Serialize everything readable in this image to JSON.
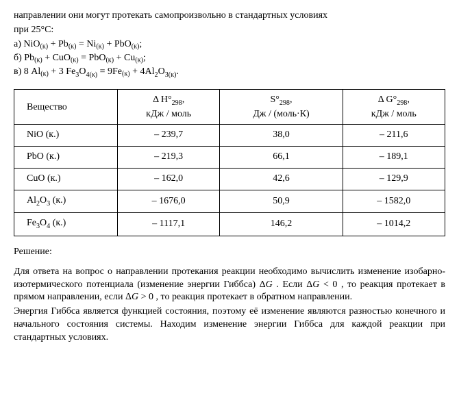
{
  "intro": {
    "line1": "направлении они могут протекать самопроизвольно в стандартных условиях",
    "line2": "при 25°С:"
  },
  "equations": {
    "a_label": "а) ",
    "a_html": "NiO<span class='sub-paren'>(к)</span> + Pb<span class='sub-paren'>(к)</span> = Ni<span class='sub-paren'>(к)</span> + PbO<span class='sub-paren'>(к)</span>;",
    "b_label": "б) ",
    "b_html": "Pb<span class='sub-paren'>(к)</span> + CuO<span class='sub-paren'>(к)</span> = PbO<span class='sub-paren'>(к)</span> + Cu<span class='sub-paren'>(к)</span>;",
    "c_label": "в) ",
    "c_html": "8 Al<span class='sub-paren'>(к)</span> + 3 Fe<sub>3</sub>O<sub>4(к)</sub> = 9Fe<span class='sub-paren'>(к)</span> + 4Al<sub>2</sub>O<sub>3(к)</sub>."
  },
  "table": {
    "headers": {
      "c0": "Вещество",
      "c1_html": "Δ H°<sub>298</sub>,<br>кДж / моль",
      "c2_html": "S°<sub>298</sub>,<br>Дж / (моль·К)",
      "c3_html": "Δ G°<sub>298</sub>,<br>кДж / моль"
    },
    "rows": [
      {
        "c0_html": "NiO (к.)",
        "c1": "– 239,7",
        "c2": "38,0",
        "c3": "– 211,6"
      },
      {
        "c0_html": "PbO (к.)",
        "c1": "– 219,3",
        "c2": "66,1",
        "c3": "– 189,1"
      },
      {
        "c0_html": "CuO (к.)",
        "c1": "– 162,0",
        "c2": "42,6",
        "c3": "– 129,9"
      },
      {
        "c0_html": "Al<sub>2</sub>O<sub>3</sub> (к.)",
        "c1": "– 1676,0",
        "c2": "50,9",
        "c3": "– 1582,0"
      },
      {
        "c0_html": "Fe<sub>3</sub>O<sub>4</sub> (к.)",
        "c1": "– 1117,1",
        "c2": "146,2",
        "c3": "– 1014,2"
      }
    ]
  },
  "solution": {
    "label": "Решение:",
    "p1": "Для ответа на вопрос о направлении протекания реакции необходимо вычислить изменение изобарно-изотермического потенциала (изменение энергии Гиббса) Δ<span class='italic'>G</span> . Если Δ<span class='italic'>G</span> &lt; 0 , то реакция протекает в прямом направлении, если Δ<span class='italic'>G</span> &gt; 0 , то реакция протекает в обратном направлении.",
    "p2": "Энергия Гиббса является функцией состояния, поэтому её изменение являются разностью конечного и начального состояния системы. Находим изменение энергии Гиббса для каждой реакции при стандартных условиях."
  }
}
